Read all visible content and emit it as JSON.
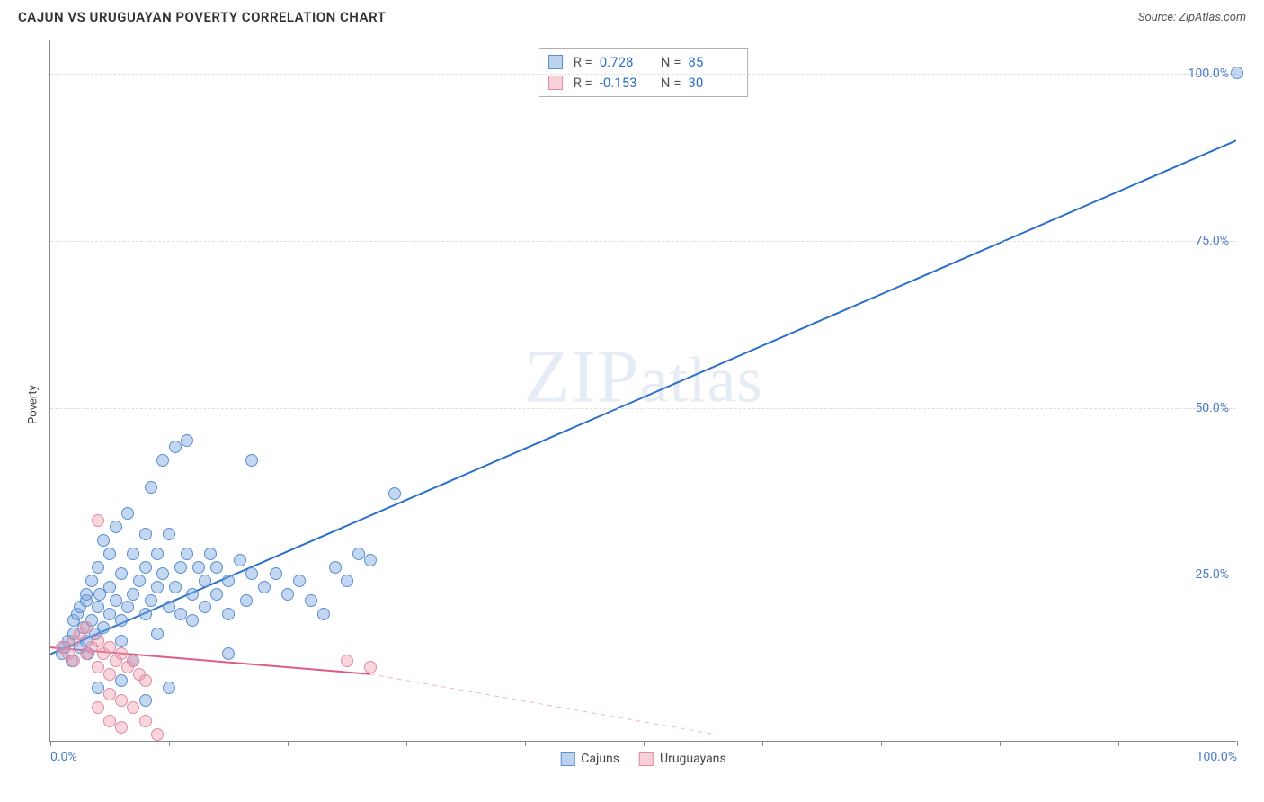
{
  "title": "CAJUN VS URUGUAYAN POVERTY CORRELATION CHART",
  "source_label": "Source: ",
  "source_name": "ZipAtlas.com",
  "ylabel": "Poverty",
  "watermark": "ZIPatlas",
  "chart": {
    "type": "scatter",
    "xlim": [
      0,
      100
    ],
    "ylim": [
      0,
      105
    ],
    "y_ticks": [
      25,
      50,
      75,
      100
    ],
    "y_tick_labels": [
      "25.0%",
      "50.0%",
      "75.0%",
      "100.0%"
    ],
    "x_ticks": [
      0,
      10,
      20,
      30,
      40,
      50,
      60,
      70,
      80,
      90,
      100
    ],
    "x_tick_labels_shown": {
      "0": "0.0%",
      "100": "100.0%"
    },
    "grid_color": "#dddddd",
    "axis_color": "#888888",
    "background_color": "#ffffff",
    "tick_label_color": "#4a7bc8",
    "tick_label_fontsize": 14,
    "marker_radius": 7,
    "series": [
      {
        "name": "Cajuns",
        "color_fill": "rgba(122,167,224,0.45)",
        "color_stroke": "#5a8fd0",
        "R": "0.728",
        "N": "85",
        "trend_solid": {
          "x1": 0,
          "y1": 13,
          "x2": 100,
          "y2": 90,
          "color": "#2c6fc9",
          "width": 2
        },
        "points": [
          [
            1,
            13
          ],
          [
            1.2,
            14
          ],
          [
            1.5,
            15
          ],
          [
            1.8,
            12
          ],
          [
            2,
            16
          ],
          [
            2,
            18
          ],
          [
            2.3,
            19
          ],
          [
            2.5,
            14
          ],
          [
            2.5,
            20
          ],
          [
            2.8,
            17
          ],
          [
            3,
            15
          ],
          [
            3,
            21
          ],
          [
            3,
            22
          ],
          [
            3.2,
            13
          ],
          [
            3.5,
            18
          ],
          [
            3.5,
            24
          ],
          [
            3.8,
            16
          ],
          [
            4,
            20
          ],
          [
            4,
            26
          ],
          [
            4.2,
            22
          ],
          [
            4.5,
            17
          ],
          [
            4.5,
            30
          ],
          [
            5,
            19
          ],
          [
            5,
            23
          ],
          [
            5,
            28
          ],
          [
            5.5,
            21
          ],
          [
            5.5,
            32
          ],
          [
            6,
            18
          ],
          [
            6,
            25
          ],
          [
            6,
            15
          ],
          [
            6.5,
            20
          ],
          [
            6.5,
            34
          ],
          [
            7,
            22
          ],
          [
            7,
            28
          ],
          [
            7,
            12
          ],
          [
            7.5,
            24
          ],
          [
            8,
            26
          ],
          [
            8,
            19
          ],
          [
            8,
            31
          ],
          [
            8.5,
            21
          ],
          [
            8.5,
            38
          ],
          [
            9,
            23
          ],
          [
            9,
            28
          ],
          [
            9,
            16
          ],
          [
            9.5,
            25
          ],
          [
            9.5,
            42
          ],
          [
            10,
            20
          ],
          [
            10,
            31
          ],
          [
            10.5,
            23
          ],
          [
            10.5,
            44
          ],
          [
            11,
            26
          ],
          [
            11,
            19
          ],
          [
            11.5,
            28
          ],
          [
            11.5,
            45
          ],
          [
            12,
            22
          ],
          [
            12,
            18
          ],
          [
            12.5,
            26
          ],
          [
            13,
            20
          ],
          [
            13,
            24
          ],
          [
            13.5,
            28
          ],
          [
            14,
            22
          ],
          [
            14,
            26
          ],
          [
            15,
            24
          ],
          [
            15,
            19
          ],
          [
            15,
            13
          ],
          [
            16,
            27
          ],
          [
            16.5,
            21
          ],
          [
            17,
            25
          ],
          [
            17,
            42
          ],
          [
            18,
            23
          ],
          [
            19,
            25
          ],
          [
            20,
            22
          ],
          [
            21,
            24
          ],
          [
            22,
            21
          ],
          [
            23,
            19
          ],
          [
            24,
            26
          ],
          [
            25,
            24
          ],
          [
            26,
            28
          ],
          [
            27,
            27
          ],
          [
            29,
            37
          ],
          [
            8,
            6
          ],
          [
            10,
            8
          ],
          [
            6,
            9
          ],
          [
            4,
            8
          ],
          [
            100,
            100
          ]
        ]
      },
      {
        "name": "Uruguayans",
        "color_fill": "rgba(240,150,170,0.4)",
        "color_stroke": "#e08ba0",
        "R": "-0.153",
        "N": "30",
        "trend_solid": {
          "x1": 0,
          "y1": 14,
          "x2": 27,
          "y2": 10,
          "color": "#e05a85",
          "width": 2
        },
        "trend_dashed": {
          "x1": 27,
          "y1": 10,
          "x2": 56,
          "y2": 1,
          "color": "#f0b5c5",
          "width": 1
        },
        "points": [
          [
            1,
            14
          ],
          [
            1.5,
            13
          ],
          [
            2,
            15
          ],
          [
            2,
            12
          ],
          [
            2.5,
            16
          ],
          [
            3,
            13
          ],
          [
            3,
            17
          ],
          [
            3.5,
            14
          ],
          [
            4,
            15
          ],
          [
            4,
            11
          ],
          [
            4.5,
            13
          ],
          [
            5,
            14
          ],
          [
            5,
            10
          ],
          [
            5.5,
            12
          ],
          [
            6,
            13
          ],
          [
            6.5,
            11
          ],
          [
            7,
            12
          ],
          [
            7.5,
            10
          ],
          [
            4,
            33
          ],
          [
            8,
            9
          ],
          [
            5,
            7
          ],
          [
            6,
            6
          ],
          [
            4,
            5
          ],
          [
            7,
            5
          ],
          [
            5,
            3
          ],
          [
            8,
            3
          ],
          [
            6,
            2
          ],
          [
            9,
            1
          ],
          [
            25,
            12
          ],
          [
            27,
            11
          ]
        ]
      }
    ]
  },
  "stats_box": {
    "rows": [
      {
        "swatch": "blue",
        "r_label": "R =",
        "r_val": "0.728",
        "n_label": "N =",
        "n_val": "85"
      },
      {
        "swatch": "pink",
        "r_label": "R =",
        "r_val": "-0.153",
        "n_label": "N =",
        "n_val": "30"
      }
    ]
  },
  "bottom_legend": [
    {
      "swatch": "blue",
      "label": "Cajuns"
    },
    {
      "swatch": "pink",
      "label": "Uruguayans"
    }
  ]
}
